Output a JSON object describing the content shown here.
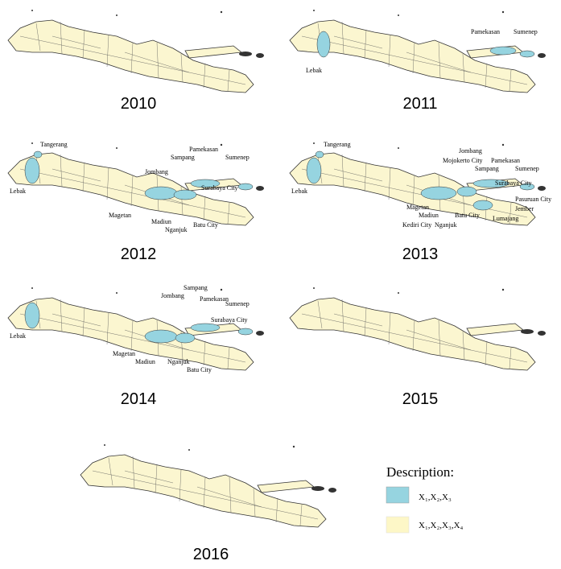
{
  "maps": [
    {
      "year": "2010",
      "labels": []
    },
    {
      "year": "2011",
      "labels": [
        "Lebak",
        "Pamekasan",
        "Sumenep"
      ]
    },
    {
      "year": "2012",
      "labels": [
        "Tangerang",
        "Lebak",
        "Pamekasan",
        "Sampang",
        "Sumenep",
        "Jombang",
        "Surabaya City",
        "Magetan",
        "Madiun",
        "Nganjuk",
        "Batu City"
      ]
    },
    {
      "year": "2013",
      "labels": [
        "Tangerang",
        "Lebak",
        "Mojokerto City",
        "Jombang",
        "Sampang",
        "Pamekasan",
        "Sumenep",
        "Surabaya City",
        "Pasuruan City",
        "Jember",
        "Lumajang",
        "Magetan",
        "Madiun",
        "Kediri City",
        "Nganjuk",
        "Batu City"
      ]
    },
    {
      "year": "2014",
      "labels": [
        "Lebak",
        "Sampang",
        "Jombang",
        "Pamekasan",
        "Sumenep",
        "Surabaya City",
        "Magetan",
        "Madiun",
        "Nganjuk",
        "Batu City"
      ]
    },
    {
      "year": "2015",
      "labels": []
    },
    {
      "year": "2016",
      "labels": []
    }
  ],
  "legend": {
    "title": "Description:",
    "items": [
      {
        "label": "X₁,X₂,X₃",
        "color": "#96d4e0"
      },
      {
        "label": "X₁,X₂,X₃,X₄",
        "color": "#fdf7c7"
      }
    ]
  }
}
